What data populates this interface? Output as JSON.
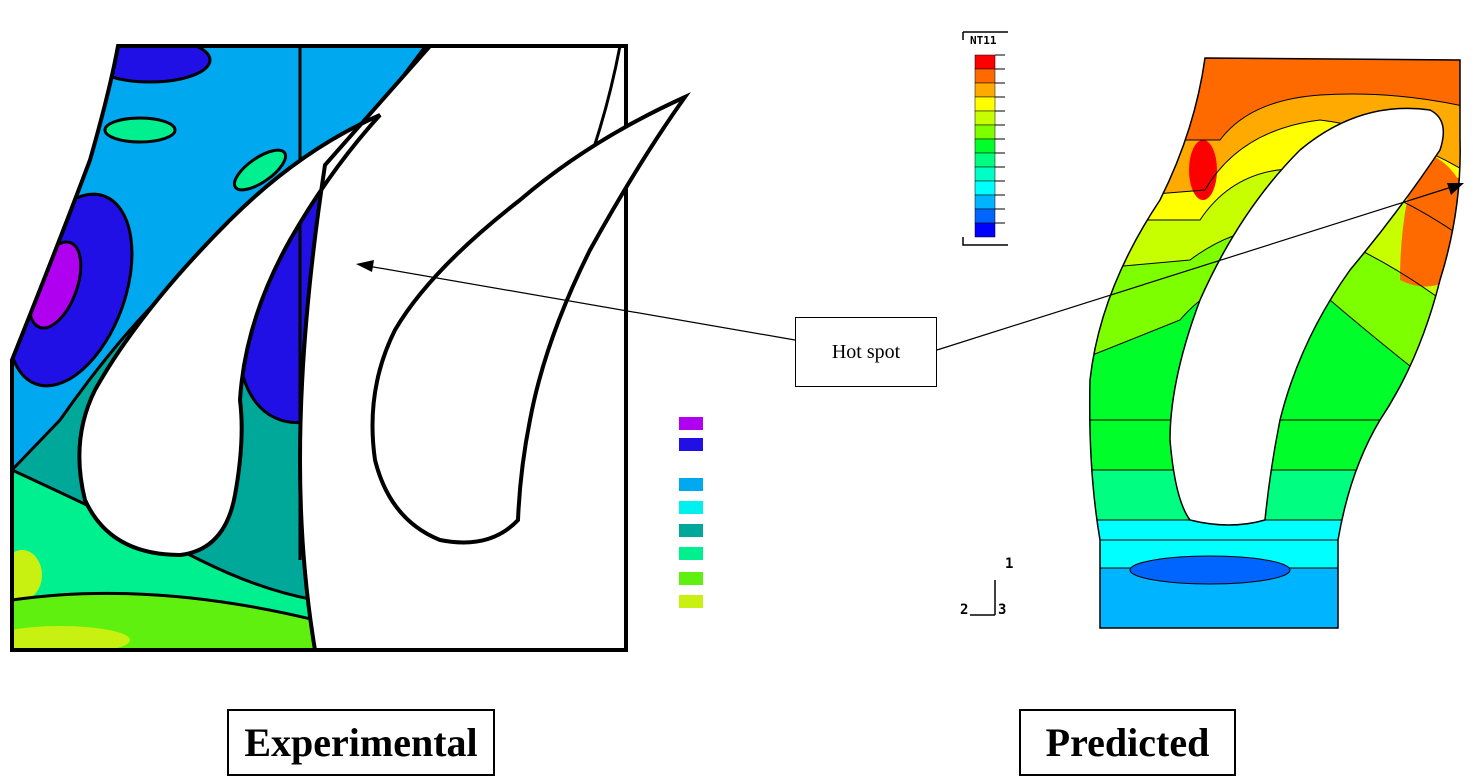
{
  "panels": {
    "experimental": {
      "caption": "Experimental"
    },
    "predicted": {
      "caption": "Predicted"
    }
  },
  "callout": {
    "label": "Hot spot"
  },
  "predicted_legend": {
    "title": "NT11",
    "colors": [
      "#ff0000",
      "#ff6a00",
      "#ffaa00",
      "#ffff00",
      "#c8ff00",
      "#7dff00",
      "#00ff2a",
      "#00ff80",
      "#00ffc4",
      "#00ffff",
      "#00b4ff",
      "#0064ff",
      "#0000ff"
    ]
  },
  "experimental_legend": {
    "colors": [
      "#b000f0",
      "#2010e6",
      "#00a8f0",
      "#00f0f0",
      "#00a89a",
      "#00f090",
      "#60f010",
      "#c8f010"
    ]
  },
  "axis_triad": {
    "axis_1": "1",
    "axis_2": "2",
    "axis_3": "3"
  }
}
